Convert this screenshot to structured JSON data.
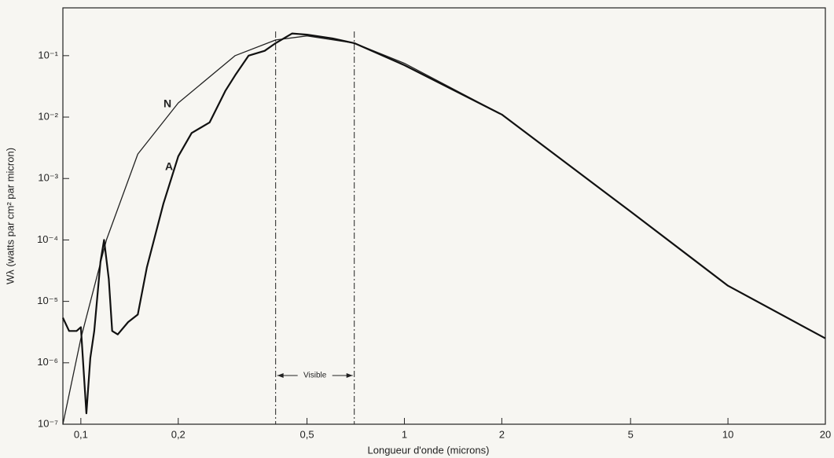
{
  "chart_data": {
    "type": "line",
    "xlabel": "Longueur d'onde (microns)",
    "ylabel": "Wλ (watts par cm² par micron)",
    "xscale": "log",
    "yscale": "log",
    "xlim": [
      0.088,
      20
    ],
    "ylim": [
      1e-07,
      0.6
    ],
    "xticks": [
      {
        "value": 0.1,
        "label": "0,1"
      },
      {
        "value": 0.2,
        "label": "0,2"
      },
      {
        "value": 0.5,
        "label": "0,5"
      },
      1,
      2,
      5,
      10,
      20
    ],
    "yticks": [
      {
        "value": 1e-07,
        "label": "10⁻⁷"
      },
      {
        "value": 1e-06,
        "label": "10⁻⁶"
      },
      {
        "value": 1e-05,
        "label": "10⁻⁵"
      },
      {
        "value": 0.0001,
        "label": "10⁻⁴"
      },
      {
        "value": 0.001,
        "label": "10⁻³"
      },
      {
        "value": 0.01,
        "label": "10⁻²"
      },
      {
        "value": 0.1,
        "label": "10⁻¹"
      }
    ],
    "visible_label": "Visible",
    "visible_range": [
      0.4,
      0.7
    ],
    "series": [
      {
        "name": "N",
        "color": "#222222",
        "x": [
          0.088,
          0.1,
          0.12,
          0.15,
          0.2,
          0.3,
          0.4,
          0.5,
          0.7,
          1,
          2,
          5,
          10,
          20
        ],
        "values": [
          1e-07,
          2.5e-06,
          0.0001,
          0.0025,
          0.017,
          0.1,
          0.18,
          0.21,
          0.16,
          0.075,
          0.011,
          0.00029,
          1.8e-05,
          2.5e-06
        ]
      },
      {
        "name": "A",
        "color": "#111111",
        "x": [
          0.088,
          0.092,
          0.097,
          0.1,
          0.102,
          0.104,
          0.107,
          0.11,
          0.115,
          0.118,
          0.122,
          0.125,
          0.13,
          0.14,
          0.15,
          0.16,
          0.18,
          0.2,
          0.22,
          0.25,
          0.28,
          0.3,
          0.33,
          0.37,
          0.4,
          0.45,
          0.5,
          0.6,
          0.7,
          1,
          2,
          5,
          10,
          20
        ],
        "values": [
          5.4e-06,
          3.3e-06,
          3.3e-06,
          3.8e-06,
          7.5e-07,
          1.5e-07,
          1.2e-06,
          3.3e-06,
          4.4e-05,
          0.0001,
          2.3e-05,
          3.3e-06,
          2.9e-06,
          4.6e-06,
          6.1e-06,
          3.6e-05,
          0.00039,
          0.0023,
          0.0055,
          0.0082,
          0.027,
          0.048,
          0.1,
          0.12,
          0.16,
          0.23,
          0.22,
          0.19,
          0.16,
          0.07,
          0.011,
          0.00029,
          1.8e-05,
          2.5e-06
        ]
      }
    ]
  }
}
